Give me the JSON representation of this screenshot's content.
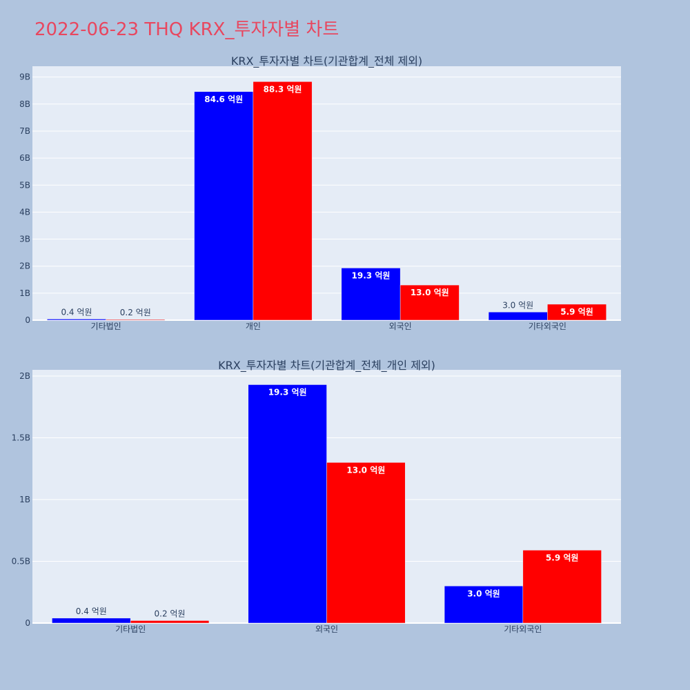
{
  "page": {
    "title": "2022-06-23 THQ KRX_투자자별 차트",
    "background": "#b0c4de",
    "title_color": "#e8475f"
  },
  "chart_data": [
    {
      "type": "bar",
      "title": "KRX_투자자별 차트(기관합계_전체 제외)",
      "categories": [
        "기타법인",
        "개인",
        "외국인",
        "기타외국인"
      ],
      "series": [
        {
          "color": "#0000ff",
          "values": [
            0.04,
            8.46,
            1.93,
            0.3
          ],
          "labels": [
            "0.4 억원",
            "84.6 억원",
            "19.3 억원",
            "3.0 억원"
          ]
        },
        {
          "color": "#ff0000",
          "values": [
            0.02,
            8.83,
            1.3,
            0.59
          ],
          "labels": [
            "0.2 억원",
            "88.3 억원",
            "13.0 억원",
            "5.9 억원"
          ]
        }
      ],
      "ylim": [
        0,
        9.4
      ],
      "yticks": [
        0,
        1,
        2,
        3,
        4,
        5,
        6,
        7,
        8,
        9
      ],
      "ytick_labels": [
        "0",
        "1B",
        "2B",
        "3B",
        "4B",
        "5B",
        "6B",
        "7B",
        "8B",
        "9B"
      ],
      "grid": true,
      "plot_bg": "#e5ecf6"
    },
    {
      "type": "bar",
      "title": "KRX_투자자별 차트(기관합계_전체_개인 제외)",
      "categories": [
        "기타법인",
        "외국인",
        "기타외국인"
      ],
      "series": [
        {
          "color": "#0000ff",
          "values": [
            0.04,
            1.93,
            0.3
          ],
          "labels": [
            "0.4 억원",
            "19.3 억원",
            "3.0 억원"
          ]
        },
        {
          "color": "#ff0000",
          "values": [
            0.02,
            1.3,
            0.59
          ],
          "labels": [
            "0.2 억원",
            "13.0 억원",
            "5.9 억원"
          ]
        }
      ],
      "ylim": [
        0,
        2.05
      ],
      "yticks": [
        0,
        0.5,
        1,
        1.5,
        2
      ],
      "ytick_labels": [
        "0",
        "0.5B",
        "1B",
        "1.5B",
        "2B"
      ],
      "grid": true,
      "plot_bg": "#e5ecf6"
    }
  ]
}
